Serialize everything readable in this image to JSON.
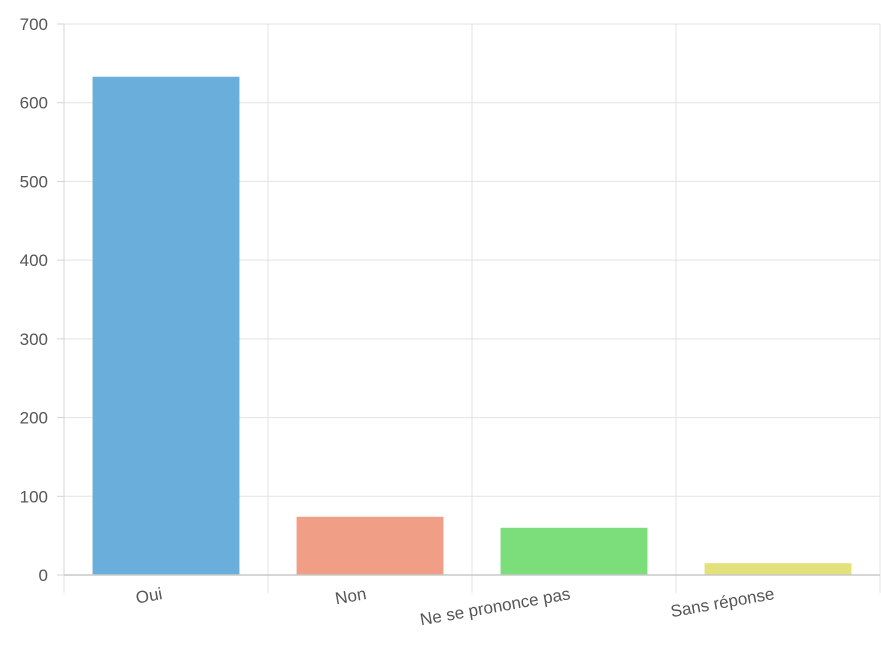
{
  "chart_data": {
    "type": "bar",
    "categories": [
      "Oui",
      "Non",
      "Ne se prononce pas",
      "Sans réponse"
    ],
    "values": [
      633,
      74,
      60,
      15
    ],
    "colors": [
      "#6aaedb",
      "#f19e87",
      "#7bde7b",
      "#e2e17a"
    ],
    "ylim": [
      0,
      700
    ],
    "yticks": [
      "0",
      "100",
      "200",
      "300",
      "400",
      "500",
      "600",
      "700"
    ],
    "grid": true,
    "title": "",
    "xlabel": "",
    "ylabel": ""
  }
}
